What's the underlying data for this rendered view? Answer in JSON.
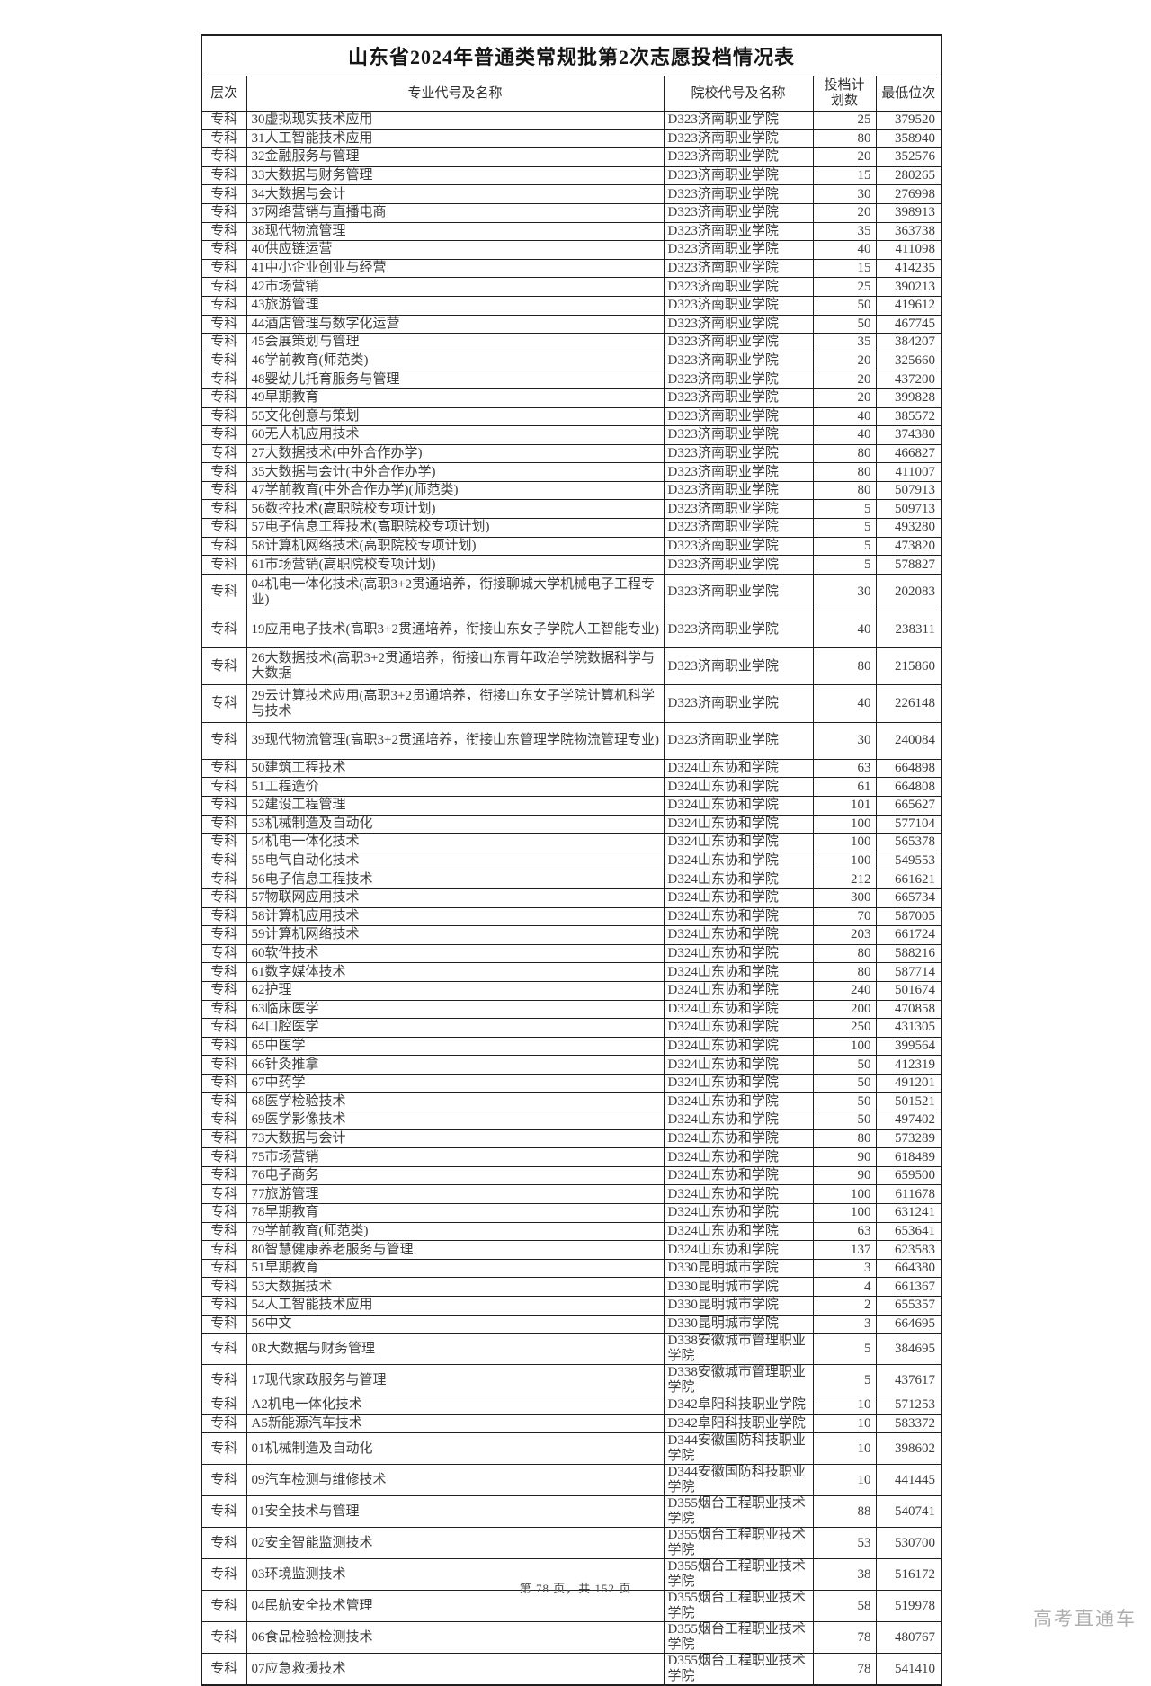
{
  "page": {
    "title": "山东省2024年普通类常规批第2次志愿投档情况表",
    "footer": "第 78 页，共 152 页",
    "watermark": "高考直通车"
  },
  "table": {
    "headers": {
      "level": "层次",
      "major": "专业代号及名称",
      "college": "院校代号及名称",
      "plan_line1": "投档计",
      "plan_line2": "划数",
      "rank": "最低位次"
    },
    "rows": [
      {
        "level": "专科",
        "major": "30虚拟现实技术应用",
        "college": "D323济南职业学院",
        "plan": "25",
        "rank": "379520"
      },
      {
        "level": "专科",
        "major": "31人工智能技术应用",
        "college": "D323济南职业学院",
        "plan": "80",
        "rank": "358940"
      },
      {
        "level": "专科",
        "major": "32金融服务与管理",
        "college": "D323济南职业学院",
        "plan": "20",
        "rank": "352576"
      },
      {
        "level": "专科",
        "major": "33大数据与财务管理",
        "college": "D323济南职业学院",
        "plan": "15",
        "rank": "280265"
      },
      {
        "level": "专科",
        "major": "34大数据与会计",
        "college": "D323济南职业学院",
        "plan": "30",
        "rank": "276998"
      },
      {
        "level": "专科",
        "major": "37网络营销与直播电商",
        "college": "D323济南职业学院",
        "plan": "20",
        "rank": "398913"
      },
      {
        "level": "专科",
        "major": "38现代物流管理",
        "college": "D323济南职业学院",
        "plan": "35",
        "rank": "363738"
      },
      {
        "level": "专科",
        "major": "40供应链运营",
        "college": "D323济南职业学院",
        "plan": "40",
        "rank": "411098"
      },
      {
        "level": "专科",
        "major": "41中小企业创业与经营",
        "college": "D323济南职业学院",
        "plan": "15",
        "rank": "414235"
      },
      {
        "level": "专科",
        "major": "42市场营销",
        "college": "D323济南职业学院",
        "plan": "25",
        "rank": "390213"
      },
      {
        "level": "专科",
        "major": "43旅游管理",
        "college": "D323济南职业学院",
        "plan": "50",
        "rank": "419612"
      },
      {
        "level": "专科",
        "major": "44酒店管理与数字化运营",
        "college": "D323济南职业学院",
        "plan": "50",
        "rank": "467745"
      },
      {
        "level": "专科",
        "major": "45会展策划与管理",
        "college": "D323济南职业学院",
        "plan": "35",
        "rank": "384207"
      },
      {
        "level": "专科",
        "major": "46学前教育(师范类)",
        "college": "D323济南职业学院",
        "plan": "20",
        "rank": "325660"
      },
      {
        "level": "专科",
        "major": "48婴幼儿托育服务与管理",
        "college": "D323济南职业学院",
        "plan": "20",
        "rank": "437200"
      },
      {
        "level": "专科",
        "major": "49早期教育",
        "college": "D323济南职业学院",
        "plan": "20",
        "rank": "399828"
      },
      {
        "level": "专科",
        "major": "55文化创意与策划",
        "college": "D323济南职业学院",
        "plan": "40",
        "rank": "385572"
      },
      {
        "level": "专科",
        "major": "60无人机应用技术",
        "college": "D323济南职业学院",
        "plan": "40",
        "rank": "374380"
      },
      {
        "level": "专科",
        "major": "27大数据技术(中外合作办学)",
        "college": "D323济南职业学院",
        "plan": "80",
        "rank": "466827"
      },
      {
        "level": "专科",
        "major": "35大数据与会计(中外合作办学)",
        "college": "D323济南职业学院",
        "plan": "80",
        "rank": "411007"
      },
      {
        "level": "专科",
        "major": "47学前教育(中外合作办学)(师范类)",
        "college": "D323济南职业学院",
        "plan": "80",
        "rank": "507913"
      },
      {
        "level": "专科",
        "major": "56数控技术(高职院校专项计划)",
        "college": "D323济南职业学院",
        "plan": "5",
        "rank": "509713"
      },
      {
        "level": "专科",
        "major": "57电子信息工程技术(高职院校专项计划)",
        "college": "D323济南职业学院",
        "plan": "5",
        "rank": "493280"
      },
      {
        "level": "专科",
        "major": "58计算机网络技术(高职院校专项计划)",
        "college": "D323济南职业学院",
        "plan": "5",
        "rank": "473820"
      },
      {
        "level": "专科",
        "major": "61市场营销(高职院校专项计划)",
        "college": "D323济南职业学院",
        "plan": "5",
        "rank": "578827"
      },
      {
        "level": "专科",
        "major": "04机电一体化技术(高职3+2贯通培养，衔接聊城大学机械电子工程专业)",
        "college": "D323济南职业学院",
        "plan": "30",
        "rank": "202083",
        "tall": true
      },
      {
        "level": "专科",
        "major": "19应用电子技术(高职3+2贯通培养，衔接山东女子学院人工智能专业)",
        "college": "D323济南职业学院",
        "plan": "40",
        "rank": "238311",
        "tall": true
      },
      {
        "level": "专科",
        "major": "26大数据技术(高职3+2贯通培养，衔接山东青年政治学院数据科学与大数据",
        "college": "D323济南职业学院",
        "plan": "80",
        "rank": "215860",
        "tall": true
      },
      {
        "level": "专科",
        "major": "29云计算技术应用(高职3+2贯通培养，衔接山东女子学院计算机科学与技术",
        "college": "D323济南职业学院",
        "plan": "40",
        "rank": "226148",
        "tall": true
      },
      {
        "level": "专科",
        "major": "39现代物流管理(高职3+2贯通培养，衔接山东管理学院物流管理专业)",
        "college": "D323济南职业学院",
        "plan": "30",
        "rank": "240084",
        "tall": true
      },
      {
        "level": "专科",
        "major": "50建筑工程技术",
        "college": "D324山东协和学院",
        "plan": "63",
        "rank": "664898"
      },
      {
        "level": "专科",
        "major": "51工程造价",
        "college": "D324山东协和学院",
        "plan": "61",
        "rank": "664808"
      },
      {
        "level": "专科",
        "major": "52建设工程管理",
        "college": "D324山东协和学院",
        "plan": "101",
        "rank": "665627"
      },
      {
        "level": "专科",
        "major": "53机械制造及自动化",
        "college": "D324山东协和学院",
        "plan": "100",
        "rank": "577104"
      },
      {
        "level": "专科",
        "major": "54机电一体化技术",
        "college": "D324山东协和学院",
        "plan": "100",
        "rank": "565378"
      },
      {
        "level": "专科",
        "major": "55电气自动化技术",
        "college": "D324山东协和学院",
        "plan": "100",
        "rank": "549553"
      },
      {
        "level": "专科",
        "major": "56电子信息工程技术",
        "college": "D324山东协和学院",
        "plan": "212",
        "rank": "661621"
      },
      {
        "level": "专科",
        "major": "57物联网应用技术",
        "college": "D324山东协和学院",
        "plan": "300",
        "rank": "665734"
      },
      {
        "level": "专科",
        "major": "58计算机应用技术",
        "college": "D324山东协和学院",
        "plan": "70",
        "rank": "587005"
      },
      {
        "level": "专科",
        "major": "59计算机网络技术",
        "college": "D324山东协和学院",
        "plan": "203",
        "rank": "661724"
      },
      {
        "level": "专科",
        "major": "60软件技术",
        "college": "D324山东协和学院",
        "plan": "80",
        "rank": "588216"
      },
      {
        "level": "专科",
        "major": "61数字媒体技术",
        "college": "D324山东协和学院",
        "plan": "80",
        "rank": "587714"
      },
      {
        "level": "专科",
        "major": "62护理",
        "college": "D324山东协和学院",
        "plan": "240",
        "rank": "501674"
      },
      {
        "level": "专科",
        "major": "63临床医学",
        "college": "D324山东协和学院",
        "plan": "200",
        "rank": "470858"
      },
      {
        "level": "专科",
        "major": "64口腔医学",
        "college": "D324山东协和学院",
        "plan": "250",
        "rank": "431305"
      },
      {
        "level": "专科",
        "major": "65中医学",
        "college": "D324山东协和学院",
        "plan": "100",
        "rank": "399564"
      },
      {
        "level": "专科",
        "major": "66针灸推拿",
        "college": "D324山东协和学院",
        "plan": "50",
        "rank": "412319"
      },
      {
        "level": "专科",
        "major": "67中药学",
        "college": "D324山东协和学院",
        "plan": "50",
        "rank": "491201"
      },
      {
        "level": "专科",
        "major": "68医学检验技术",
        "college": "D324山东协和学院",
        "plan": "50",
        "rank": "501521"
      },
      {
        "level": "专科",
        "major": "69医学影像技术",
        "college": "D324山东协和学院",
        "plan": "50",
        "rank": "497402"
      },
      {
        "level": "专科",
        "major": "73大数据与会计",
        "college": "D324山东协和学院",
        "plan": "80",
        "rank": "573289"
      },
      {
        "level": "专科",
        "major": "75市场营销",
        "college": "D324山东协和学院",
        "plan": "90",
        "rank": "618489"
      },
      {
        "level": "专科",
        "major": "76电子商务",
        "college": "D324山东协和学院",
        "plan": "90",
        "rank": "659500"
      },
      {
        "level": "专科",
        "major": "77旅游管理",
        "college": "D324山东协和学院",
        "plan": "100",
        "rank": "611678"
      },
      {
        "level": "专科",
        "major": "78早期教育",
        "college": "D324山东协和学院",
        "plan": "100",
        "rank": "631241"
      },
      {
        "level": "专科",
        "major": "79学前教育(师范类)",
        "college": "D324山东协和学院",
        "plan": "63",
        "rank": "653641"
      },
      {
        "level": "专科",
        "major": "80智慧健康养老服务与管理",
        "college": "D324山东协和学院",
        "plan": "137",
        "rank": "623583"
      },
      {
        "level": "专科",
        "major": "51早期教育",
        "college": "D330昆明城市学院",
        "plan": "3",
        "rank": "664380"
      },
      {
        "level": "专科",
        "major": "53大数据技术",
        "college": "D330昆明城市学院",
        "plan": "4",
        "rank": "661367"
      },
      {
        "level": "专科",
        "major": "54人工智能技术应用",
        "college": "D330昆明城市学院",
        "plan": "2",
        "rank": "655357"
      },
      {
        "level": "专科",
        "major": "56中文",
        "college": "D330昆明城市学院",
        "plan": "3",
        "rank": "664695"
      },
      {
        "level": "专科",
        "major": "0R大数据与财务管理",
        "college": "D338安徽城市管理职业学院",
        "plan": "5",
        "rank": "384695"
      },
      {
        "level": "专科",
        "major": "17现代家政服务与管理",
        "college": "D338安徽城市管理职业学院",
        "plan": "5",
        "rank": "437617"
      },
      {
        "level": "专科",
        "major": "A2机电一体化技术",
        "college": "D342阜阳科技职业学院",
        "plan": "10",
        "rank": "571253"
      },
      {
        "level": "专科",
        "major": "A5新能源汽车技术",
        "college": "D342阜阳科技职业学院",
        "plan": "10",
        "rank": "583372"
      },
      {
        "level": "专科",
        "major": "01机械制造及自动化",
        "college": "D344安徽国防科技职业学院",
        "plan": "10",
        "rank": "398602"
      },
      {
        "level": "专科",
        "major": "09汽车检测与维修技术",
        "college": "D344安徽国防科技职业学院",
        "plan": "10",
        "rank": "441445"
      },
      {
        "level": "专科",
        "major": "01安全技术与管理",
        "college": "D355烟台工程职业技术学院",
        "plan": "88",
        "rank": "540741"
      },
      {
        "level": "专科",
        "major": "02安全智能监测技术",
        "college": "D355烟台工程职业技术学院",
        "plan": "53",
        "rank": "530700"
      },
      {
        "level": "专科",
        "major": "03环境监测技术",
        "college": "D355烟台工程职业技术学院",
        "plan": "38",
        "rank": "516172"
      },
      {
        "level": "专科",
        "major": "04民航安全技术管理",
        "college": "D355烟台工程职业技术学院",
        "plan": "58",
        "rank": "519978"
      },
      {
        "level": "专科",
        "major": "06食品检验检测技术",
        "college": "D355烟台工程职业技术学院",
        "plan": "78",
        "rank": "480767"
      },
      {
        "level": "专科",
        "major": "07应急救援技术",
        "college": "D355烟台工程职业技术学院",
        "plan": "78",
        "rank": "541410"
      }
    ]
  }
}
